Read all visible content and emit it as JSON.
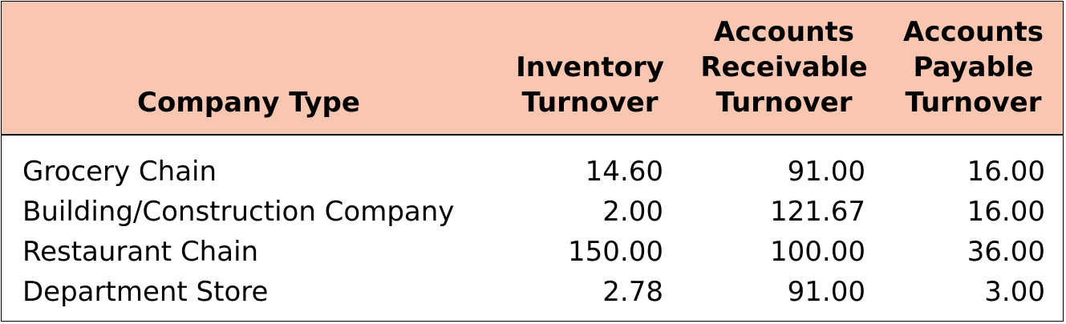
{
  "table": {
    "headers": [
      "Company Type",
      "Inventory\nTurnover",
      "Accounts\nReceivable\nTurnover",
      "Accounts\nPayable\nTurnover"
    ],
    "rows": [
      {
        "company": "Grocery Chain",
        "inventory": "14.60",
        "receivable": "91.00",
        "payable": "16.00"
      },
      {
        "company": "Building/Construction Company",
        "inventory": "2.00",
        "receivable": "121.67",
        "payable": "16.00"
      },
      {
        "company": "Restaurant Chain",
        "inventory": "150.00",
        "receivable": "100.00",
        "payable": "36.00"
      },
      {
        "company": "Department Store",
        "inventory": "2.78",
        "receivable": "91.00",
        "payable": "3.00"
      }
    ],
    "colors": {
      "header_background": "#f9c6b1",
      "border": "#000000",
      "text": "#000000"
    }
  }
}
